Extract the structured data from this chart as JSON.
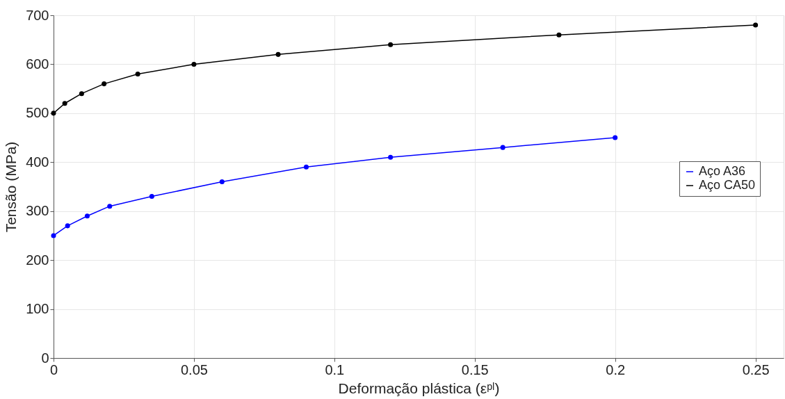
{
  "chart_data": {
    "type": "line",
    "xlabel": "Deformação plástica (εᵖˡ)",
    "ylabel": "Tensão (MPa)",
    "xlim": [
      0,
      0.26
    ],
    "xticks": [
      0,
      0.05,
      0.1,
      0.15,
      0.2,
      0.25
    ],
    "ylim": [
      0,
      700
    ],
    "yticks": [
      0,
      100,
      200,
      300,
      400,
      500,
      600,
      700
    ],
    "grid": true,
    "legend": "right",
    "marker": "circle",
    "line_style": "solid",
    "series": [
      {
        "name": "Aço A36",
        "color": "#0000ff",
        "x": [
          0,
          0.005,
          0.012,
          0.02,
          0.035,
          0.06,
          0.09,
          0.12,
          0.16,
          0.2
        ],
        "values": [
          250,
          270,
          290,
          310,
          330,
          360,
          390,
          410,
          430,
          450
        ]
      },
      {
        "name": "Aço CA50",
        "color": "#000000",
        "x": [
          0,
          0.004,
          0.01,
          0.018,
          0.03,
          0.05,
          0.08,
          0.12,
          0.18,
          0.25
        ],
        "values": [
          500,
          520,
          540,
          560,
          580,
          600,
          620,
          640,
          660,
          680
        ]
      }
    ]
  }
}
